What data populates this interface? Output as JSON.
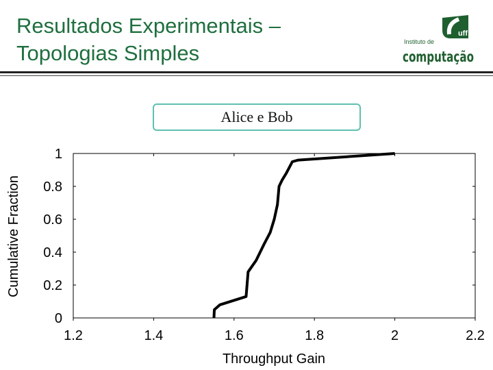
{
  "slide": {
    "title_line1": "Resultados Experimentais –",
    "title_line2": "Topologias Simples",
    "title_color": "#1f6f3f"
  },
  "logo": {
    "small_text": "Instituto de",
    "main_text": "computação",
    "mark_text": "uff",
    "color": "#1f5f2f"
  },
  "chart_label": "Alice e Bob",
  "chart_data": {
    "type": "line",
    "xlabel": "Throughput Gain",
    "ylabel": "Cumulative Fraction",
    "xlim": [
      1.2,
      2.2
    ],
    "ylim": [
      0,
      1
    ],
    "x_ticks": [
      "1.2",
      "1.4",
      "1.6",
      "1.8",
      "2",
      "2.2"
    ],
    "y_ticks": [
      "0",
      "0.2",
      "0.4",
      "0.6",
      "0.8",
      "1"
    ],
    "grid": false,
    "series": [
      {
        "color": "#000000",
        "points": [
          [
            1.55,
            0.0
          ],
          [
            1.551,
            0.05
          ],
          [
            1.565,
            0.08
          ],
          [
            1.63,
            0.13
          ],
          [
            1.635,
            0.28
          ],
          [
            1.655,
            0.35
          ],
          [
            1.675,
            0.45
          ],
          [
            1.69,
            0.52
          ],
          [
            1.7,
            0.6
          ],
          [
            1.708,
            0.69
          ],
          [
            1.712,
            0.8
          ],
          [
            1.72,
            0.84
          ],
          [
            1.73,
            0.88
          ],
          [
            1.745,
            0.95
          ],
          [
            1.76,
            0.96
          ],
          [
            2.0,
            1.0
          ]
        ]
      }
    ]
  }
}
